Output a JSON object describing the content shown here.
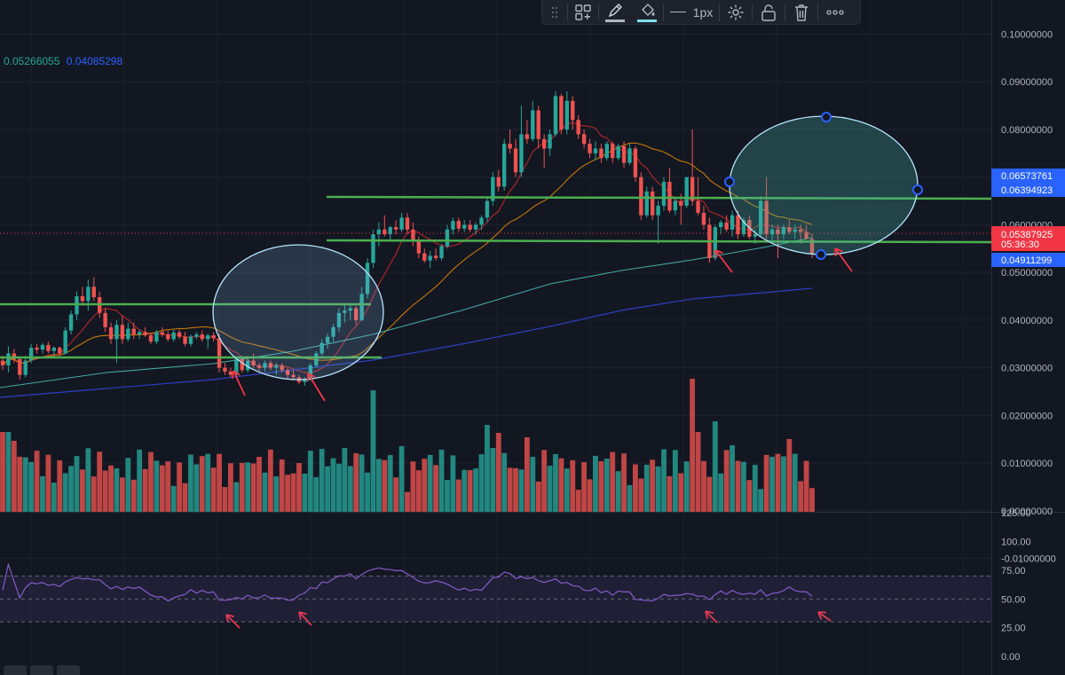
{
  "toolbar": {
    "line_width_label": "1px",
    "icons": [
      "drag-handle-icon",
      "layout-icon",
      "pencil-icon",
      "fill-bucket-icon",
      "line-style-icon",
      "gear-icon",
      "lock-icon",
      "trash-icon",
      "more-icon"
    ]
  },
  "legend": {
    "value1": "0.05266055",
    "value2": "0.04085298",
    "color1": "#22ab94",
    "color2": "#2962ff"
  },
  "price_axis": {
    "ticks": [
      "0.10000000",
      "0.09000000",
      "0.08000000",
      "0.07000000",
      "0.06000000",
      "0.05000000",
      "0.04000000",
      "0.03000000",
      "0.02000000",
      "0.01000000",
      "0.00000000",
      "-0.01000000"
    ],
    "labels": [
      {
        "text": "0.06573761",
        "bg": "#2962ff"
      },
      {
        "text": "0.06394923",
        "bg": "#2962ff"
      },
      {
        "text": "0.05387925",
        "bg": "#f23645"
      },
      {
        "text": "05:36:30",
        "bg": "#f23645"
      },
      {
        "text": "0.04911299",
        "bg": "#2962ff"
      }
    ]
  },
  "rsi_axis": {
    "ticks": [
      "125.00",
      "100.00",
      "75.00",
      "50.00",
      "25.00",
      "0.00"
    ]
  },
  "colors": {
    "background": "#131722",
    "up": "#26a69a",
    "down": "#ef5350",
    "level_line": "#4caf50",
    "ellipse": "#b3e5fc",
    "rsi_line": "#7e57c2",
    "annotation_arrow": "#f23645"
  },
  "chart_data": {
    "type": "candlestick",
    "ylim": [
      -0.01,
      0.1
    ],
    "candles": [
      [
        0.0315,
        0.0325,
        0.0295,
        0.0305
      ],
      [
        0.0305,
        0.0345,
        0.029,
        0.033
      ],
      [
        0.033,
        0.034,
        0.031,
        0.0318
      ],
      [
        0.0318,
        0.0322,
        0.0275,
        0.0285
      ],
      [
        0.0285,
        0.0325,
        0.028,
        0.0315
      ],
      [
        0.0315,
        0.035,
        0.031,
        0.0342
      ],
      [
        0.0342,
        0.035,
        0.033,
        0.0338
      ],
      [
        0.0338,
        0.0352,
        0.033,
        0.0348
      ],
      [
        0.0348,
        0.0355,
        0.033,
        0.0335
      ],
      [
        0.0335,
        0.0345,
        0.032,
        0.0342
      ],
      [
        0.0342,
        0.0345,
        0.0325,
        0.033
      ],
      [
        0.033,
        0.0385,
        0.0328,
        0.0378
      ],
      [
        0.0378,
        0.042,
        0.037,
        0.0412
      ],
      [
        0.0412,
        0.046,
        0.04,
        0.045
      ],
      [
        0.045,
        0.047,
        0.043,
        0.044
      ],
      [
        0.044,
        0.0485,
        0.042,
        0.047
      ],
      [
        0.047,
        0.049,
        0.044,
        0.0448
      ],
      [
        0.0448,
        0.046,
        0.0405,
        0.0415
      ],
      [
        0.0415,
        0.0425,
        0.0375,
        0.0385
      ],
      [
        0.0385,
        0.0395,
        0.035,
        0.036
      ],
      [
        0.036,
        0.04,
        0.031,
        0.039
      ],
      [
        0.039,
        0.041,
        0.035,
        0.036
      ],
      [
        0.036,
        0.0395,
        0.0355,
        0.0382
      ],
      [
        0.0382,
        0.0395,
        0.036,
        0.037
      ],
      [
        0.037,
        0.038,
        0.036,
        0.0375
      ],
      [
        0.0375,
        0.0385,
        0.0365,
        0.0368
      ],
      [
        0.0368,
        0.0372,
        0.035,
        0.0355
      ],
      [
        0.0355,
        0.038,
        0.035,
        0.0375
      ],
      [
        0.0375,
        0.0385,
        0.0365,
        0.037
      ],
      [
        0.037,
        0.0378,
        0.0355,
        0.036
      ],
      [
        0.036,
        0.038,
        0.0355,
        0.0374
      ],
      [
        0.0374,
        0.038,
        0.036,
        0.0365
      ],
      [
        0.0365,
        0.0375,
        0.0345,
        0.035
      ],
      [
        0.035,
        0.037,
        0.0345,
        0.0365
      ],
      [
        0.0365,
        0.0375,
        0.036,
        0.037
      ],
      [
        0.037,
        0.0378,
        0.0355,
        0.036
      ],
      [
        0.036,
        0.0372,
        0.034,
        0.0368
      ],
      [
        0.0368,
        0.0375,
        0.0355,
        0.0362
      ],
      [
        0.0362,
        0.0372,
        0.029,
        0.03
      ],
      [
        0.03,
        0.031,
        0.0285,
        0.0292
      ],
      [
        0.0292,
        0.03,
        0.028,
        0.0285
      ],
      [
        0.0285,
        0.0322,
        0.0282,
        0.0318
      ],
      [
        0.0318,
        0.032,
        0.029,
        0.0295
      ],
      [
        0.0295,
        0.0325,
        0.029,
        0.0315
      ],
      [
        0.0315,
        0.033,
        0.03,
        0.0305
      ],
      [
        0.0305,
        0.031,
        0.029,
        0.03
      ],
      [
        0.03,
        0.0315,
        0.0292,
        0.031
      ],
      [
        0.031,
        0.0315,
        0.0295,
        0.03
      ],
      [
        0.03,
        0.031,
        0.0285,
        0.0305
      ],
      [
        0.0305,
        0.031,
        0.029,
        0.0295
      ],
      [
        0.0295,
        0.03,
        0.0278,
        0.0285
      ],
      [
        0.0285,
        0.0295,
        0.0275,
        0.028
      ],
      [
        0.028,
        0.0285,
        0.0265,
        0.027
      ],
      [
        0.027,
        0.028,
        0.0262,
        0.0275
      ],
      [
        0.0275,
        0.031,
        0.0272,
        0.0305
      ],
      [
        0.0305,
        0.0335,
        0.03,
        0.033
      ],
      [
        0.033,
        0.036,
        0.0325,
        0.0352
      ],
      [
        0.0352,
        0.0372,
        0.034,
        0.0365
      ],
      [
        0.0365,
        0.0392,
        0.0355,
        0.0385
      ],
      [
        0.0385,
        0.0425,
        0.0375,
        0.0415
      ],
      [
        0.0415,
        0.0435,
        0.0395,
        0.042
      ],
      [
        0.042,
        0.0435,
        0.04,
        0.0425
      ],
      [
        0.0425,
        0.043,
        0.039,
        0.04
      ],
      [
        0.04,
        0.047,
        0.0398,
        0.0455
      ],
      [
        0.0455,
        0.053,
        0.0445,
        0.052
      ],
      [
        0.052,
        0.059,
        0.051,
        0.058
      ],
      [
        0.058,
        0.0605,
        0.0555,
        0.059
      ],
      [
        0.059,
        0.062,
        0.0575,
        0.058
      ],
      [
        0.058,
        0.0598,
        0.0565,
        0.0595
      ],
      [
        0.0595,
        0.061,
        0.058,
        0.059
      ],
      [
        0.059,
        0.0625,
        0.0585,
        0.0615
      ],
      [
        0.0615,
        0.0625,
        0.058,
        0.059
      ],
      [
        0.059,
        0.0605,
        0.0555,
        0.0565
      ],
      [
        0.0565,
        0.0575,
        0.053,
        0.054
      ],
      [
        0.054,
        0.055,
        0.052,
        0.0525
      ],
      [
        0.0525,
        0.0545,
        0.051,
        0.0535
      ],
      [
        0.0535,
        0.055,
        0.0525,
        0.053
      ],
      [
        0.053,
        0.056,
        0.0525,
        0.0555
      ],
      [
        0.0555,
        0.06,
        0.055,
        0.059
      ],
      [
        0.059,
        0.0615,
        0.058,
        0.0608
      ],
      [
        0.0608,
        0.0615,
        0.0585,
        0.0592
      ],
      [
        0.0592,
        0.061,
        0.0585,
        0.06
      ],
      [
        0.06,
        0.061,
        0.0585,
        0.059
      ],
      [
        0.059,
        0.0605,
        0.058,
        0.06
      ],
      [
        0.06,
        0.062,
        0.059,
        0.0615
      ],
      [
        0.0615,
        0.066,
        0.0605,
        0.065
      ],
      [
        0.065,
        0.071,
        0.064,
        0.07
      ],
      [
        0.07,
        0.0715,
        0.067,
        0.068
      ],
      [
        0.068,
        0.078,
        0.0672,
        0.077
      ],
      [
        0.077,
        0.08,
        0.075,
        0.076
      ],
      [
        0.076,
        0.078,
        0.07,
        0.071
      ],
      [
        0.071,
        0.085,
        0.07,
        0.079
      ],
      [
        0.079,
        0.082,
        0.077,
        0.078
      ],
      [
        0.078,
        0.086,
        0.0775,
        0.084
      ],
      [
        0.084,
        0.085,
        0.076,
        0.078
      ],
      [
        0.078,
        0.079,
        0.072,
        0.076
      ],
      [
        0.076,
        0.08,
        0.0745,
        0.079
      ],
      [
        0.079,
        0.088,
        0.0785,
        0.087
      ],
      [
        0.087,
        0.0875,
        0.079,
        0.08
      ],
      [
        0.08,
        0.088,
        0.079,
        0.086
      ],
      [
        0.086,
        0.087,
        0.08,
        0.082
      ],
      [
        0.082,
        0.083,
        0.078,
        0.079
      ],
      [
        0.079,
        0.08,
        0.076,
        0.077
      ],
      [
        0.077,
        0.078,
        0.074,
        0.075
      ],
      [
        0.075,
        0.0775,
        0.0735,
        0.076
      ],
      [
        0.076,
        0.077,
        0.073,
        0.074
      ],
      [
        0.074,
        0.0775,
        0.0735,
        0.077
      ],
      [
        0.077,
        0.0775,
        0.073,
        0.074
      ],
      [
        0.074,
        0.077,
        0.0735,
        0.0765
      ],
      [
        0.0765,
        0.0775,
        0.072,
        0.073
      ],
      [
        0.073,
        0.077,
        0.0725,
        0.076
      ],
      [
        0.076,
        0.0765,
        0.069,
        0.07
      ],
      [
        0.07,
        0.071,
        0.061,
        0.062
      ],
      [
        0.062,
        0.068,
        0.0615,
        0.067
      ],
      [
        0.067,
        0.068,
        0.061,
        0.062
      ],
      [
        0.062,
        0.065,
        0.056,
        0.064
      ],
      [
        0.064,
        0.07,
        0.063,
        0.069
      ],
      [
        0.069,
        0.072,
        0.0625,
        0.063
      ],
      [
        0.063,
        0.066,
        0.062,
        0.065
      ],
      [
        0.065,
        0.0665,
        0.06,
        0.064
      ],
      [
        0.064,
        0.07,
        0.0635,
        0.07
      ],
      [
        0.07,
        0.08,
        0.064,
        0.065
      ],
      [
        0.065,
        0.07,
        0.062,
        0.0625
      ],
      [
        0.0625,
        0.064,
        0.059,
        0.06
      ],
      [
        0.06,
        0.0615,
        0.052,
        0.053
      ],
      [
        0.053,
        0.06,
        0.0525,
        0.0595
      ],
      [
        0.0595,
        0.061,
        0.058,
        0.0605
      ],
      [
        0.0605,
        0.062,
        0.0585,
        0.059
      ],
      [
        0.059,
        0.063,
        0.0575,
        0.062
      ],
      [
        0.062,
        0.063,
        0.057,
        0.058
      ],
      [
        0.058,
        0.0615,
        0.0575,
        0.061
      ],
      [
        0.061,
        0.062,
        0.057,
        0.0575
      ],
      [
        0.0575,
        0.059,
        0.056,
        0.058
      ],
      [
        0.058,
        0.066,
        0.0575,
        0.065
      ],
      [
        0.065,
        0.07,
        0.057,
        0.058
      ],
      [
        0.058,
        0.06,
        0.056,
        0.059
      ],
      [
        0.059,
        0.06,
        0.053,
        0.058
      ],
      [
        0.058,
        0.06,
        0.057,
        0.0595
      ],
      [
        0.0595,
        0.061,
        0.058,
        0.0585
      ],
      [
        0.0585,
        0.06,
        0.057,
        0.059
      ],
      [
        0.059,
        0.06,
        0.056,
        0.0585
      ],
      [
        0.0585,
        0.06,
        0.0575,
        0.057
      ],
      [
        0.057,
        0.058,
        0.053,
        0.0539
      ]
    ],
    "volume_colors_from_candles": true
  }
}
